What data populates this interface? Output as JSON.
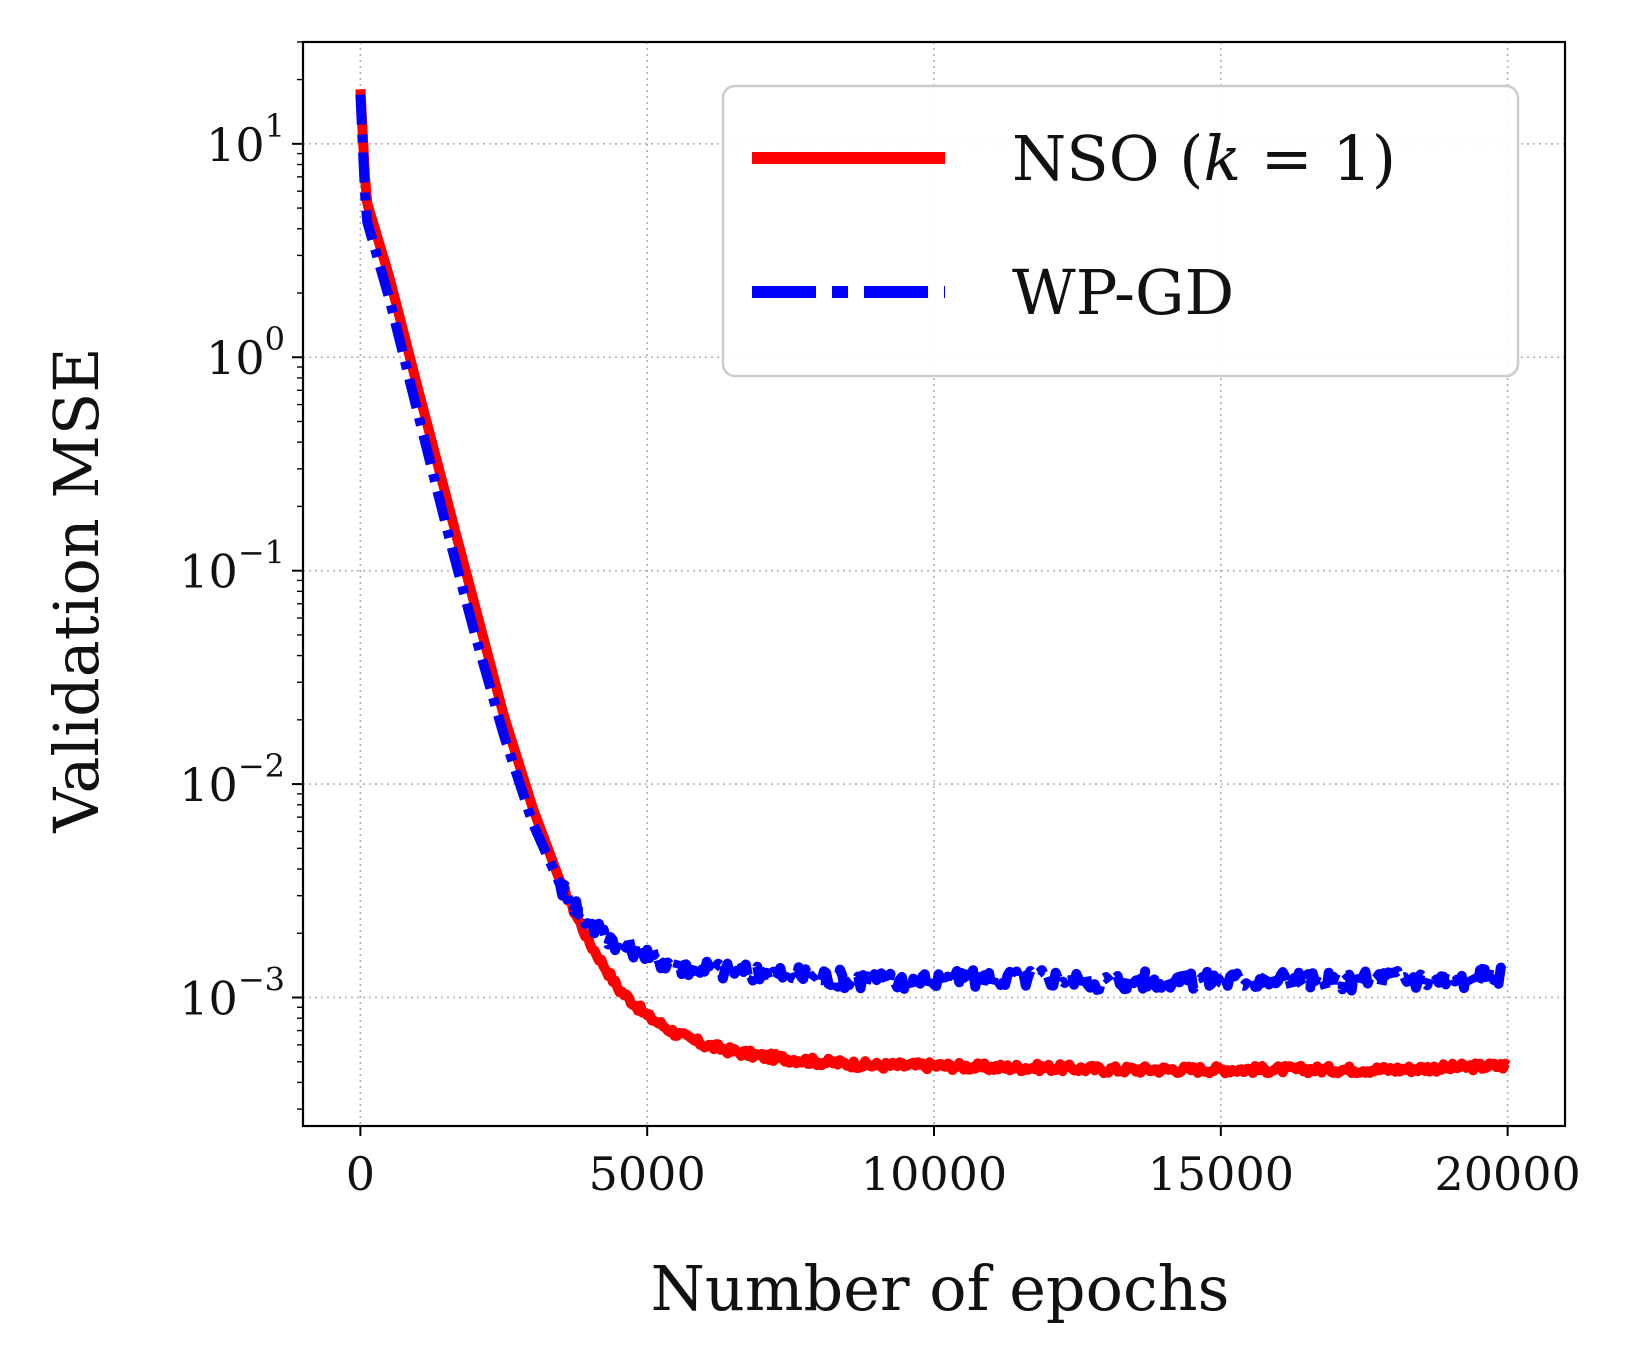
{
  "chart_data": {
    "type": "line",
    "title": "",
    "xlabel": "Number of epochs",
    "ylabel": "Validation MSE",
    "xlim": [
      -1000,
      21000
    ],
    "ylim": [
      0.00025,
      30
    ],
    "yscale": "log",
    "grid": true,
    "legend_position": "top-right",
    "x_ticks": [
      {
        "value": 0,
        "label": "0"
      },
      {
        "value": 5000,
        "label": "5000"
      },
      {
        "value": 10000,
        "label": "10000"
      },
      {
        "value": 15000,
        "label": "15000"
      },
      {
        "value": 20000,
        "label": "20000"
      }
    ],
    "y_ticks": [
      {
        "value": 0.001,
        "base": "10",
        "exp": "−3"
      },
      {
        "value": 0.01,
        "base": "10",
        "exp": "−2"
      },
      {
        "value": 0.1,
        "base": "10",
        "exp": "−1"
      },
      {
        "value": 1,
        "base": "10",
        "exp": "0"
      },
      {
        "value": 10,
        "base": "10",
        "exp": "1"
      }
    ],
    "series": [
      {
        "name": "NSO (k = 1)",
        "legend_prefix": "NSO (",
        "legend_var": "k",
        "legend_suffix": " = 1)",
        "color": "#ff0000",
        "style": "solid",
        "x": [
          0,
          100,
          500,
          1000,
          1500,
          2000,
          2500,
          3000,
          3500,
          4000,
          4500,
          5000,
          5500,
          6000,
          6500,
          7000,
          8000,
          9000,
          10000,
          11000,
          12000,
          13000,
          14000,
          15000,
          16000,
          17000,
          18000,
          19000,
          20000
        ],
        "values": [
          18,
          5.5,
          2.4,
          0.72,
          0.22,
          0.068,
          0.021,
          0.0078,
          0.0034,
          0.0018,
          0.0011,
          0.00082,
          0.00068,
          0.0006,
          0.00056,
          0.00053,
          0.0005,
          0.00048,
          0.00048,
          0.00047,
          0.00047,
          0.00046,
          0.00046,
          0.00046,
          0.00046,
          0.00046,
          0.00046,
          0.00047,
          0.00048
        ]
      },
      {
        "name": "WP-GD",
        "legend_prefix": "WP-GD",
        "legend_var": "",
        "legend_suffix": "",
        "color": "#0000ff",
        "style": "dashdot",
        "x": [
          0,
          100,
          500,
          1000,
          1500,
          2000,
          2500,
          3000,
          3500,
          4000,
          4500,
          5000,
          5500,
          6000,
          6500,
          7000,
          8000,
          9000,
          10000,
          11000,
          12000,
          13000,
          14000,
          15000,
          16000,
          17000,
          18000,
          19000,
          20000
        ],
        "values": [
          17,
          4.5,
          1.9,
          0.55,
          0.16,
          0.05,
          0.017,
          0.0066,
          0.0033,
          0.0022,
          0.0018,
          0.0016,
          0.0014,
          0.0014,
          0.0013,
          0.0013,
          0.00125,
          0.0012,
          0.0012,
          0.00122,
          0.00124,
          0.00118,
          0.00122,
          0.0012,
          0.00122,
          0.00118,
          0.00124,
          0.00118,
          0.0013
        ]
      }
    ]
  }
}
